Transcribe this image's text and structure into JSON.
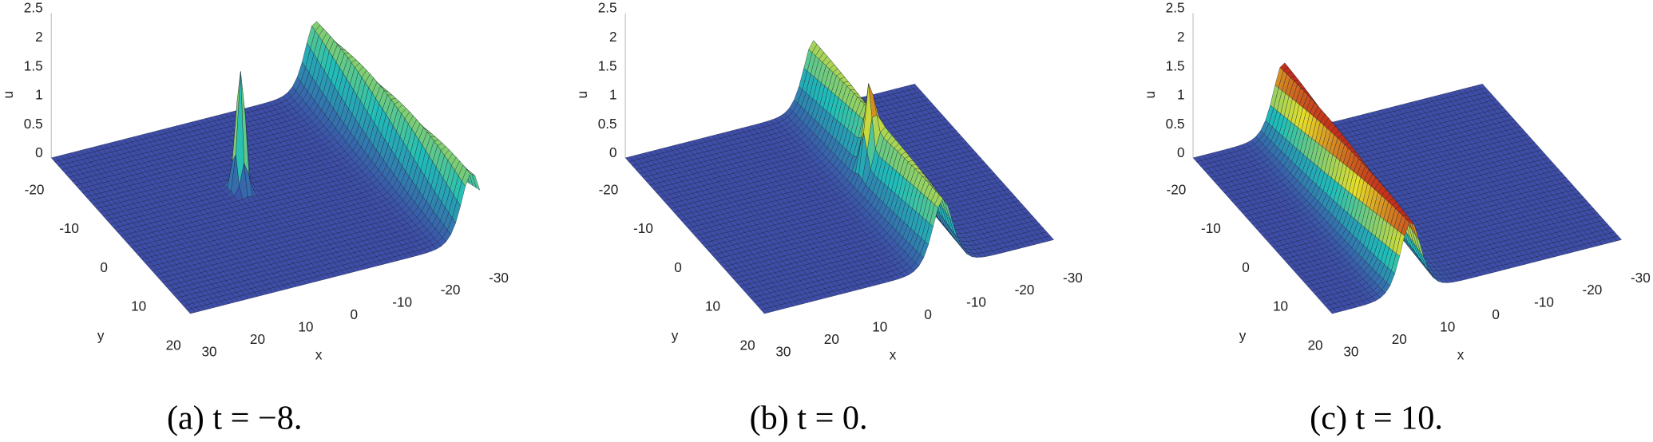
{
  "chart_data": [
    {
      "type": "surface",
      "zlabel": "u",
      "xlabel": "x",
      "ylabel": "y",
      "xlim": [
        -30,
        30
      ],
      "ylim": [
        -20,
        20
      ],
      "zlim": [
        0,
        2.5
      ],
      "xticks": [
        30,
        20,
        10,
        0,
        -10,
        -20,
        -30
      ],
      "yticks": [
        -20,
        -10,
        0,
        10,
        20
      ],
      "zticks": [
        0,
        0.5,
        1,
        1.5,
        2,
        2.5
      ],
      "caption": "(a) t = −8."
    },
    {
      "type": "surface",
      "zlabel": "u",
      "xlabel": "x",
      "ylabel": "y",
      "xlim": [
        -30,
        30
      ],
      "ylim": [
        -20,
        20
      ],
      "zlim": [
        0,
        2.5
      ],
      "xticks": [
        30,
        20,
        10,
        0,
        -10,
        -20,
        -30
      ],
      "yticks": [
        -20,
        -10,
        0,
        10,
        20
      ],
      "zticks": [
        0,
        0.5,
        1,
        1.5,
        2,
        2.5
      ],
      "caption": "(b) t = 0."
    },
    {
      "type": "surface",
      "zlabel": "u",
      "xlabel": "x",
      "ylabel": "y",
      "xlim": [
        -30,
        30
      ],
      "ylim": [
        -20,
        20
      ],
      "zlim": [
        0,
        2.5
      ],
      "xticks": [
        30,
        20,
        10,
        0,
        -10,
        -20,
        -30
      ],
      "yticks": [
        -20,
        -10,
        0,
        10,
        20
      ],
      "zticks": [
        0,
        0.5,
        1,
        1.5,
        2,
        2.5
      ],
      "caption": "(c) t = 10."
    }
  ]
}
